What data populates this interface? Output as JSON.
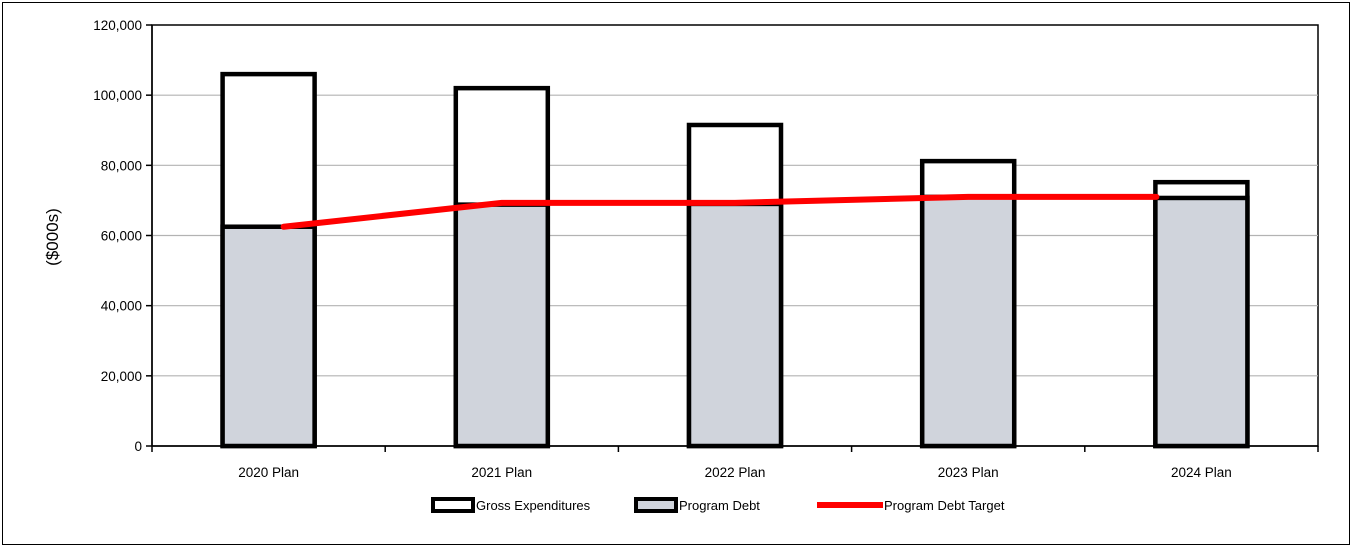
{
  "chart_data": {
    "type": "bar",
    "title": "",
    "xlabel": "",
    "ylabel": "($000s)",
    "categories": [
      "2020 Plan",
      "2021 Plan",
      "2022 Plan",
      "2023 Plan",
      "2024 Plan"
    ],
    "ylim": [
      0,
      120000
    ],
    "yticks": [
      0,
      20000,
      40000,
      60000,
      80000,
      100000,
      120000
    ],
    "ytick_labels": [
      "0",
      "20,000",
      "40,000",
      "60,000",
      "80,000",
      "100,000",
      "120,000"
    ],
    "grid": true,
    "legend_position": "bottom",
    "series": [
      {
        "name": "Gross Expenditures",
        "type": "bar",
        "color": "#ffffff",
        "values": [
          106000,
          102000,
          91500,
          81200,
          75200
        ]
      },
      {
        "name": "Program Debt",
        "type": "bar",
        "color": "#d0d4dc",
        "values": [
          62500,
          68800,
          69000,
          71000,
          70700
        ]
      },
      {
        "name": "Program Debt Target",
        "type": "line",
        "color": "#ff0000",
        "values": [
          62500,
          69300,
          69300,
          71000,
          71000
        ]
      }
    ]
  }
}
